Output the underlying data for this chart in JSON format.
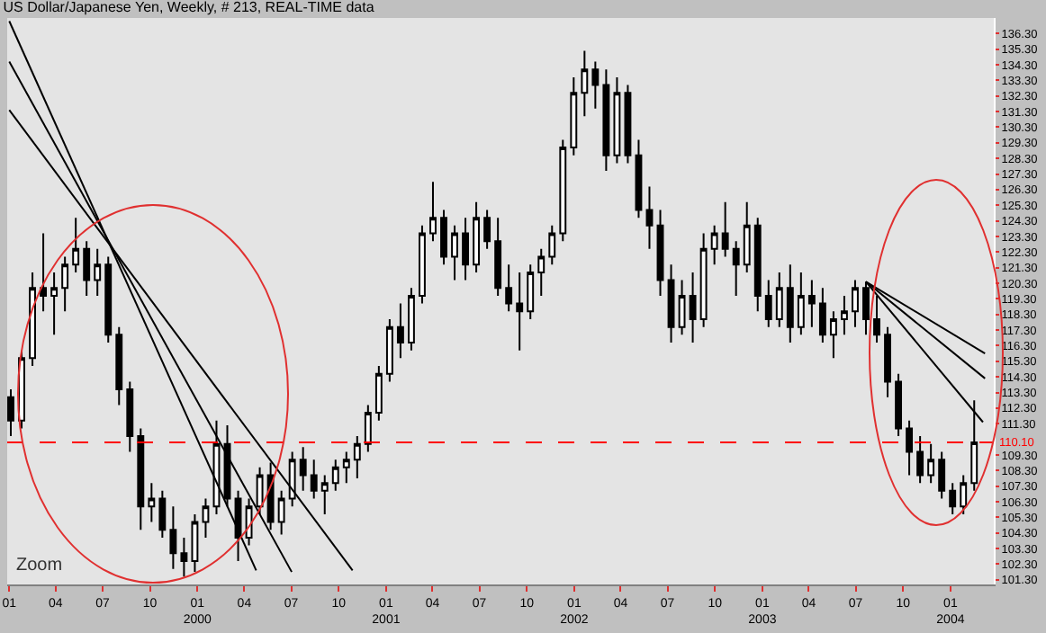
{
  "chart_data": {
    "type": "candlestick",
    "title": "US Dollar/Japanese Yen, Weekly, # 213, REAL-TIME data",
    "x": [
      "1999-01-04",
      "1999-01-25",
      "1999-02-15",
      "1999-03-08",
      "1999-03-29",
      "1999-04-19",
      "1999-05-10",
      "1999-05-31",
      "1999-06-21",
      "1999-07-12",
      "1999-08-02",
      "1999-08-23",
      "1999-09-13",
      "1999-10-04",
      "1999-10-25",
      "1999-11-15",
      "1999-12-06",
      "1999-12-27",
      "2000-01-17",
      "2000-02-07",
      "2000-02-28",
      "2000-03-20",
      "2000-04-10",
      "2000-05-01",
      "2000-05-22",
      "2000-06-12",
      "2000-07-03",
      "2000-07-24",
      "2000-08-14",
      "2000-09-04",
      "2000-09-25",
      "2000-10-16",
      "2000-11-06",
      "2000-11-27",
      "2000-12-18",
      "2001-01-08",
      "2001-01-29",
      "2001-02-19",
      "2001-03-12",
      "2001-04-02",
      "2001-04-23",
      "2001-05-14",
      "2001-06-04",
      "2001-06-25",
      "2001-07-16",
      "2001-08-06",
      "2001-08-27",
      "2001-09-17",
      "2001-10-08",
      "2001-10-29",
      "2001-11-19",
      "2001-12-10",
      "2001-12-31",
      "2002-01-21",
      "2002-02-11",
      "2002-03-04",
      "2002-03-25",
      "2002-04-15",
      "2002-05-06",
      "2002-05-27",
      "2002-06-17",
      "2002-07-08",
      "2002-07-29",
      "2002-08-19",
      "2002-09-09",
      "2002-09-30",
      "2002-10-21",
      "2002-11-11",
      "2002-12-02",
      "2002-12-23",
      "2003-01-13",
      "2003-02-03",
      "2003-02-24",
      "2003-03-17",
      "2003-04-07",
      "2003-04-28",
      "2003-05-19",
      "2003-06-09",
      "2003-06-30",
      "2003-07-21",
      "2003-08-11",
      "2003-09-01",
      "2003-09-22",
      "2003-10-13",
      "2003-11-03",
      "2003-11-24",
      "2003-12-15",
      "2004-01-05",
      "2004-01-26",
      "2004-02-16"
    ],
    "series": [
      {
        "color": "#000000",
        "ohlc": [
          [
            113.0,
            113.5,
            110.5,
            111.5
          ],
          [
            111.5,
            116.0,
            111.0,
            115.5
          ],
          [
            115.5,
            121.0,
            115.0,
            120.0
          ],
          [
            120.0,
            123.5,
            118.5,
            119.5
          ],
          [
            119.5,
            121.0,
            117.0,
            120.0
          ],
          [
            120.0,
            122.0,
            118.5,
            121.5
          ],
          [
            121.5,
            124.5,
            121.0,
            122.5
          ],
          [
            122.5,
            123.0,
            119.5,
            120.5
          ],
          [
            120.5,
            122.5,
            119.5,
            121.5
          ],
          [
            121.5,
            122.0,
            116.5,
            117.0
          ],
          [
            117.0,
            117.5,
            112.5,
            113.5
          ],
          [
            113.5,
            114.0,
            109.5,
            110.5
          ],
          [
            110.5,
            111.0,
            104.5,
            106.0
          ],
          [
            106.0,
            107.5,
            105.0,
            106.5
          ],
          [
            106.5,
            107.0,
            104.0,
            104.5
          ],
          [
            104.5,
            106.0,
            102.0,
            103.0
          ],
          [
            103.0,
            104.0,
            101.5,
            102.5
          ],
          [
            102.5,
            105.5,
            101.8,
            105.0
          ],
          [
            105.0,
            106.5,
            104.0,
            106.0
          ],
          [
            106.0,
            111.5,
            105.5,
            110.0
          ],
          [
            110.0,
            111.2,
            106.0,
            106.5
          ],
          [
            106.5,
            107.0,
            102.5,
            104.0
          ],
          [
            104.0,
            106.5,
            103.5,
            106.0
          ],
          [
            106.0,
            108.5,
            105.5,
            108.0
          ],
          [
            108.0,
            108.8,
            104.5,
            105.0
          ],
          [
            105.0,
            107.0,
            104.2,
            106.5
          ],
          [
            106.5,
            109.5,
            106.0,
            109.0
          ],
          [
            109.0,
            109.8,
            107.0,
            108.0
          ],
          [
            108.0,
            109.0,
            106.5,
            107.0
          ],
          [
            107.0,
            108.0,
            105.5,
            107.5
          ],
          [
            107.5,
            109.0,
            107.0,
            108.5
          ],
          [
            108.5,
            109.5,
            107.5,
            109.0
          ],
          [
            109.0,
            110.5,
            107.8,
            110.0
          ],
          [
            110.0,
            112.5,
            109.5,
            112.0
          ],
          [
            112.0,
            115.0,
            111.5,
            114.5
          ],
          [
            114.5,
            118.0,
            114.0,
            117.5
          ],
          [
            117.5,
            119.0,
            115.5,
            116.5
          ],
          [
            116.5,
            120.0,
            116.0,
            119.5
          ],
          [
            119.5,
            124.0,
            119.0,
            123.5
          ],
          [
            123.5,
            126.8,
            123.0,
            124.5
          ],
          [
            124.5,
            125.0,
            121.5,
            122.0
          ],
          [
            122.0,
            124.0,
            120.5,
            123.5
          ],
          [
            123.5,
            124.5,
            120.5,
            121.5
          ],
          [
            121.5,
            125.5,
            121.0,
            124.5
          ],
          [
            124.5,
            125.0,
            122.5,
            123.0
          ],
          [
            123.0,
            124.5,
            119.5,
            120.0
          ],
          [
            120.0,
            121.5,
            118.5,
            119.0
          ],
          [
            119.0,
            121.0,
            116.0,
            118.5
          ],
          [
            118.5,
            121.5,
            118.0,
            121.0
          ],
          [
            121.0,
            122.5,
            119.5,
            122.0
          ],
          [
            122.0,
            124.0,
            121.5,
            123.5
          ],
          [
            123.5,
            129.5,
            123.0,
            129.0
          ],
          [
            129.0,
            133.5,
            128.5,
            132.5
          ],
          [
            132.5,
            135.2,
            131.0,
            134.0
          ],
          [
            134.0,
            134.5,
            131.5,
            133.0
          ],
          [
            133.0,
            134.0,
            127.5,
            128.5
          ],
          [
            128.5,
            133.5,
            128.0,
            132.5
          ],
          [
            132.5,
            133.0,
            128.0,
            128.5
          ],
          [
            128.5,
            129.5,
            124.5,
            125.0
          ],
          [
            125.0,
            126.5,
            122.5,
            124.0
          ],
          [
            124.0,
            125.0,
            119.5,
            120.5
          ],
          [
            120.5,
            121.5,
            116.5,
            117.5
          ],
          [
            117.5,
            120.5,
            117.0,
            119.5
          ],
          [
            119.5,
            121.0,
            116.5,
            118.0
          ],
          [
            118.0,
            123.5,
            117.5,
            122.5
          ],
          [
            122.5,
            124.0,
            121.5,
            123.5
          ],
          [
            123.5,
            125.5,
            122.0,
            122.5
          ],
          [
            122.5,
            123.0,
            119.5,
            121.5
          ],
          [
            121.5,
            125.5,
            121.0,
            124.0
          ],
          [
            124.0,
            124.5,
            118.5,
            119.5
          ],
          [
            119.5,
            120.5,
            117.5,
            118.0
          ],
          [
            118.0,
            121.0,
            117.5,
            120.0
          ],
          [
            120.0,
            121.5,
            116.5,
            117.5
          ],
          [
            117.5,
            121.0,
            117.0,
            119.5
          ],
          [
            119.5,
            120.5,
            117.5,
            119.0
          ],
          [
            119.0,
            120.0,
            116.5,
            117.0
          ],
          [
            117.0,
            118.5,
            115.5,
            118.0
          ],
          [
            118.0,
            119.5,
            117.0,
            118.5
          ],
          [
            118.5,
            120.5,
            117.5,
            120.0
          ],
          [
            120.0,
            120.4,
            117.0,
            118.0
          ],
          [
            118.0,
            119.5,
            116.5,
            117.0
          ],
          [
            117.0,
            117.5,
            113.0,
            114.0
          ],
          [
            114.0,
            114.5,
            110.5,
            111.0
          ],
          [
            111.0,
            111.5,
            108.0,
            109.5
          ],
          [
            109.5,
            110.5,
            107.5,
            108.0
          ],
          [
            108.0,
            110.0,
            107.5,
            109.0
          ],
          [
            109.0,
            109.5,
            106.5,
            107.0
          ],
          [
            107.0,
            107.5,
            105.5,
            106.0
          ],
          [
            106.0,
            108.0,
            105.5,
            107.5
          ],
          [
            107.5,
            112.8,
            107.0,
            110.1
          ]
        ]
      },
      {
        "type": "line",
        "color": "#000000",
        "x": [
          "1999-01-01",
          "2000-04-24"
        ],
        "values": [
          137.1,
          101.9
        ]
      },
      {
        "type": "line",
        "color": "#000000",
        "x": [
          "1999-01-01",
          "2000-07-02"
        ],
        "values": [
          134.5,
          101.8
        ]
      },
      {
        "type": "line",
        "color": "#000000",
        "x": [
          "1999-01-01",
          "2000-10-28"
        ],
        "values": [
          131.4,
          101.9
        ]
      },
      {
        "type": "line",
        "color": "#000000",
        "x": [
          "2003-07-21",
          "2004-03-08"
        ],
        "values": [
          120.4,
          115.8
        ]
      },
      {
        "type": "line",
        "color": "#000000",
        "x": [
          "2003-07-21",
          "2004-03-08"
        ],
        "values": [
          120.4,
          114.2
        ]
      },
      {
        "type": "line",
        "color": "#000000",
        "x": [
          "2003-07-21",
          "2004-03-04"
        ],
        "values": [
          120.4,
          111.4
        ]
      }
    ],
    "xlim": [
      "1998-12-28",
      "2004-03-25"
    ],
    "xticks": [
      {
        "value": "1999-01-01",
        "label": "01"
      },
      {
        "value": "1999-04-01",
        "label": "04"
      },
      {
        "value": "1999-07-01",
        "label": "07"
      },
      {
        "value": "1999-10-01",
        "label": "10"
      },
      {
        "value": "2000-01-01",
        "label": "01\n2000"
      },
      {
        "value": "2000-04-01",
        "label": "04"
      },
      {
        "value": "2000-07-01",
        "label": "07"
      },
      {
        "value": "2000-10-01",
        "label": "10"
      },
      {
        "value": "2001-01-01",
        "label": "01\n2001"
      },
      {
        "value": "2001-04-01",
        "label": "04"
      },
      {
        "value": "2001-07-01",
        "label": "07"
      },
      {
        "value": "2001-10-01",
        "label": "10"
      },
      {
        "value": "2002-01-01",
        "label": "01\n2002"
      },
      {
        "value": "2002-04-01",
        "label": "04"
      },
      {
        "value": "2002-07-01",
        "label": "07"
      },
      {
        "value": "2002-10-01",
        "label": "10"
      },
      {
        "value": "2003-01-01",
        "label": "01\n2003"
      },
      {
        "value": "2003-04-01",
        "label": "04"
      },
      {
        "value": "2003-07-01",
        "label": "07"
      },
      {
        "value": "2003-10-01",
        "label": "10"
      },
      {
        "value": "2004-01-01",
        "label": "01\n2004"
      }
    ],
    "ylim": [
      101.0,
      137.3
    ],
    "yticks": [
      {
        "value": 101.3,
        "label": "101.30"
      },
      {
        "value": 102.3,
        "label": "102.30"
      },
      {
        "value": 103.3,
        "label": "103.30"
      },
      {
        "value": 104.3,
        "label": "104.30"
      },
      {
        "value": 105.3,
        "label": "105.30"
      },
      {
        "value": 106.3,
        "label": "106.30"
      },
      {
        "value": 107.3,
        "label": "107.30"
      },
      {
        "value": 108.3,
        "label": "108.30"
      },
      {
        "value": 109.3,
        "label": "109.30"
      },
      {
        "value": 111.3,
        "label": "111.30"
      },
      {
        "value": 112.3,
        "label": "112.30"
      },
      {
        "value": 113.3,
        "label": "113.30"
      },
      {
        "value": 114.3,
        "label": "114.30"
      },
      {
        "value": 115.3,
        "label": "115.30"
      },
      {
        "value": 116.3,
        "label": "116.30"
      },
      {
        "value": 117.3,
        "label": "117.30"
      },
      {
        "value": 118.3,
        "label": "118.30"
      },
      {
        "value": 119.3,
        "label": "119.30"
      },
      {
        "value": 120.3,
        "label": "120.30"
      },
      {
        "value": 121.3,
        "label": "121.30"
      },
      {
        "value": 122.3,
        "label": "122.30"
      },
      {
        "value": 123.3,
        "label": "123.30"
      },
      {
        "value": 124.3,
        "label": "124.30"
      },
      {
        "value": 125.3,
        "label": "125.30"
      },
      {
        "value": 126.3,
        "label": "126.30"
      },
      {
        "value": 127.3,
        "label": "127.30"
      },
      {
        "value": 128.3,
        "label": "128.30"
      },
      {
        "value": 129.3,
        "label": "129.30"
      },
      {
        "value": 130.3,
        "label": "130.30"
      },
      {
        "value": 131.3,
        "label": "131.30"
      },
      {
        "value": 132.3,
        "label": "132.30"
      },
      {
        "value": 133.3,
        "label": "133.30"
      },
      {
        "value": 134.3,
        "label": "134.30"
      },
      {
        "value": 135.3,
        "label": "135.30"
      },
      {
        "value": 136.3,
        "label": "136.30"
      }
    ],
    "ref_lines": [
      {
        "axis": "y",
        "value": 110.1,
        "label": "110.10",
        "color": "#ff0000",
        "line_style": "dashed"
      }
    ],
    "annotations": [
      "Zoom"
    ],
    "grid": false
  }
}
